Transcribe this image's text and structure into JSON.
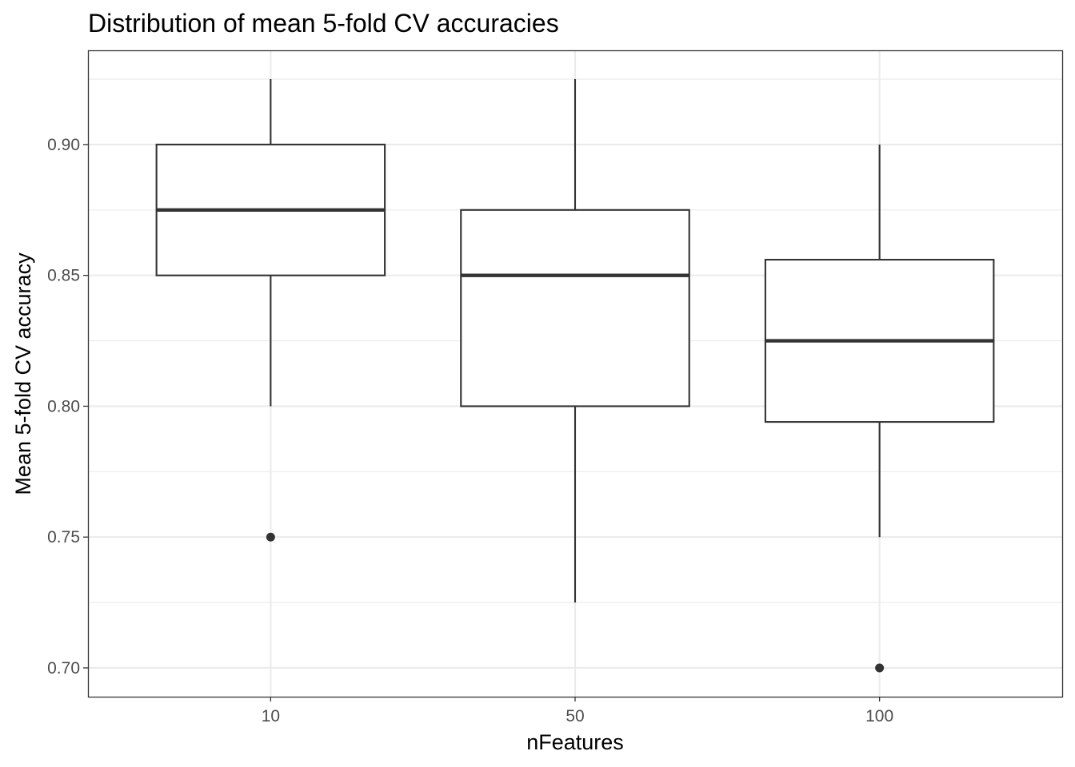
{
  "chart_data": {
    "type": "box",
    "title": "Distribution of mean 5-fold CV accuracies",
    "xlabel": "nFeatures",
    "ylabel": "Mean 5-fold CV accuracy",
    "categories": [
      "10",
      "50",
      "100"
    ],
    "yticks": [
      "0.70",
      "0.75",
      "0.80",
      "0.85",
      "0.90"
    ],
    "ylim": [
      0.689,
      0.936
    ],
    "grid": true,
    "boxes": [
      {
        "category": "10",
        "whisker_low": 0.8,
        "q1": 0.85,
        "median": 0.875,
        "q3": 0.9,
        "whisker_high": 0.925,
        "outliers": [
          0.75
        ]
      },
      {
        "category": "50",
        "whisker_low": 0.725,
        "q1": 0.8,
        "median": 0.85,
        "q3": 0.875,
        "whisker_high": 0.925,
        "outliers": []
      },
      {
        "category": "100",
        "whisker_low": 0.75,
        "q1": 0.794,
        "median": 0.825,
        "q3": 0.856,
        "whisker_high": 0.9,
        "outliers": [
          0.7
        ]
      }
    ],
    "colors": {
      "line": "#333333",
      "grid": "#ebebeb",
      "box_fill": "#ffffff"
    }
  }
}
